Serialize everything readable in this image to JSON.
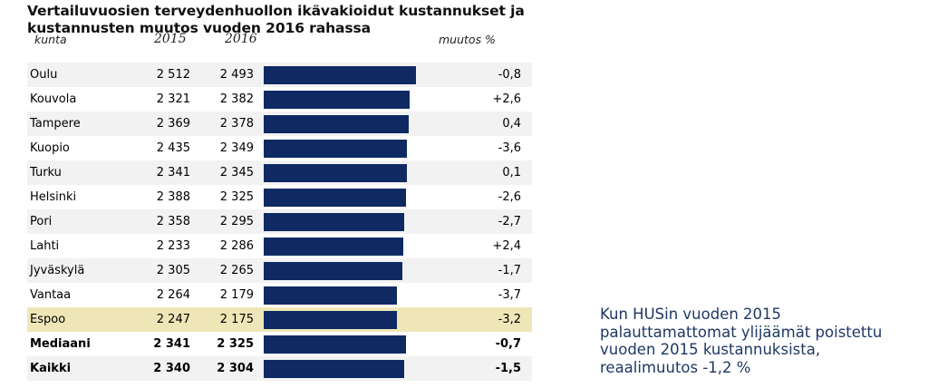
{
  "chart_data": {
    "type": "bar",
    "title": "Vertailuvuosien terveydenhuollon ikävakioidut kustannukset ja kustannusten muutos vuoden 2016 rahassa",
    "headers": {
      "name": "kunta",
      "y2015": "2015",
      "y2016": "2016",
      "change": "muutos %"
    },
    "bar_axis_range": [
      0,
      2493
    ],
    "rows": [
      {
        "name": "Oulu",
        "y2015": "2 512",
        "y2016": "2 493",
        "value2016": 2493,
        "change": "-0,8"
      },
      {
        "name": "Kouvola",
        "y2015": "2 321",
        "y2016": "2 382",
        "value2016": 2382,
        "change": "+2,6"
      },
      {
        "name": "Tampere",
        "y2015": "2 369",
        "y2016": "2 378",
        "value2016": 2378,
        "change": "0,4"
      },
      {
        "name": "Kuopio",
        "y2015": "2 435",
        "y2016": "2 349",
        "value2016": 2349,
        "change": "-3,6"
      },
      {
        "name": "Turku",
        "y2015": "2 341",
        "y2016": "2 345",
        "value2016": 2345,
        "change": "0,1"
      },
      {
        "name": "Helsinki",
        "y2015": "2 388",
        "y2016": "2 325",
        "value2016": 2325,
        "change": "-2,6"
      },
      {
        "name": "Pori",
        "y2015": "2 358",
        "y2016": "2 295",
        "value2016": 2295,
        "change": "-2,7"
      },
      {
        "name": "Lahti",
        "y2015": "2 233",
        "y2016": "2 286",
        "value2016": 2286,
        "change": "+2,4"
      },
      {
        "name": "Jyväskylä",
        "y2015": "2 305",
        "y2016": "2 265",
        "value2016": 2265,
        "change": "-1,7"
      },
      {
        "name": "Vantaa",
        "y2015": "2 264",
        "y2016": "2 179",
        "value2016": 2179,
        "change": "-3,7"
      },
      {
        "name": "Espoo",
        "y2015": "2 247",
        "y2016": "2 175",
        "value2016": 2175,
        "change": "-3,2",
        "highlight": true
      },
      {
        "name": "Mediaani",
        "y2015": "2 341",
        "y2016": "2 325",
        "value2016": 2325,
        "change": "-0,7",
        "bold": true
      },
      {
        "name": "Kaikki",
        "y2015": "2 340",
        "y2016": "2 304",
        "value2016": 2304,
        "change": "-1,5",
        "bold": true
      }
    ],
    "bar_color": "#0f2a63",
    "highlight_color": "#efe6b8"
  },
  "note": {
    "lines": [
      "Kun HUSin vuoden 2015",
      "palauttamattomat ylijäämät poistettu",
      "vuoden 2015 kustannuksista,",
      "reaalimuutos -1,2 %"
    ]
  }
}
